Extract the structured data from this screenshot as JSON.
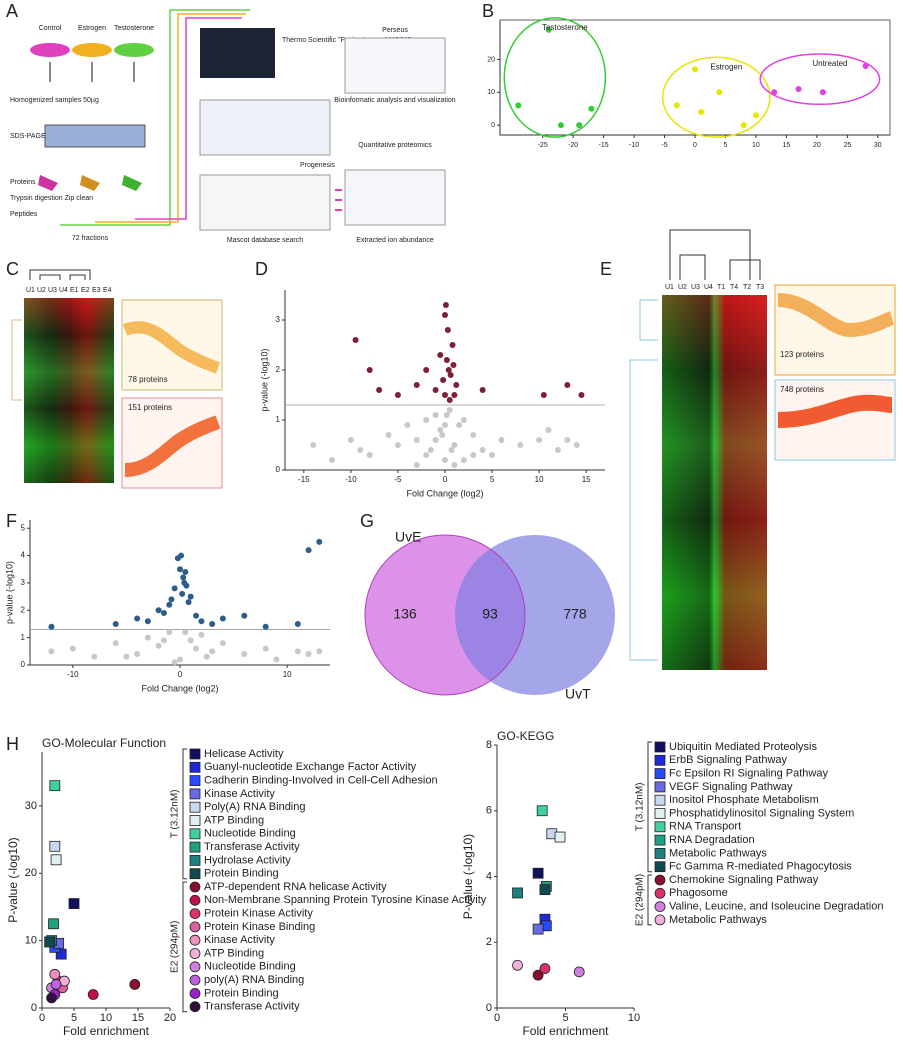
{
  "panel_labels": [
    "A",
    "B",
    "C",
    "D",
    "E",
    "F",
    "G",
    "H"
  ],
  "panel_a": {
    "groups": [
      "Control",
      "Estrogen",
      "Testosterone"
    ],
    "homogenized": "Homogenized samples 50µg",
    "sds": "SDS-PAGE",
    "proteins": "Proteins",
    "digestion": "Trypsin digestion Zip clean",
    "peptides": "Peptides",
    "fractions": "72 fractions",
    "instrument": "Thermo Scientific \"Fusion Lumos\" MS/MS",
    "progenesis": "Progenesis",
    "mascot": "Mascot database search",
    "perseus": "Perseus",
    "bioinfo": "Bioinformatic analysis and visualization",
    "quant": "Quantitative proteomics",
    "extracted": "Extracted ion abundance"
  },
  "panel_c": {
    "columns": [
      "U1",
      "U2",
      "U3",
      "U4",
      "E1",
      "E2",
      "E3",
      "E4"
    ],
    "clusters": [
      "78 proteins",
      "151 proteins"
    ]
  },
  "panel_e": {
    "columns": [
      "U1",
      "U2",
      "U3",
      "U4",
      "T1",
      "T4",
      "T2",
      "T3"
    ],
    "clusters": [
      "123 proteins",
      "748 proteins"
    ]
  },
  "chart_data": [
    {
      "type": "scatter",
      "xlim": [
        -32,
        32
      ],
      "ylim": [
        -3,
        32
      ],
      "xticks": [
        -25,
        -20,
        -15,
        -10,
        -5,
        0,
        5,
        10,
        15,
        20,
        25,
        30
      ],
      "yticks": [
        0,
        10,
        20
      ],
      "series": [
        {
          "name": "Testosterone",
          "color": "#33cc33",
          "x": [
            -24,
            -29,
            -22,
            -17,
            -19
          ],
          "values": [
            29,
            6,
            0,
            5,
            0
          ]
        },
        {
          "name": "Estrogen",
          "color": "#e6e600",
          "x": [
            -3,
            0,
            1,
            4,
            8,
            10
          ],
          "values": [
            6,
            17,
            4,
            10,
            0,
            3
          ]
        },
        {
          "name": "Untreated",
          "color": "#e040e0",
          "x": [
            13,
            17,
            21,
            28
          ],
          "values": [
            10,
            11,
            10,
            18
          ]
        }
      ]
    },
    {
      "type": "scatter",
      "xlabel": "Fold Change (log2)",
      "ylabel": "p-value (-log10)",
      "xlim": [
        -17,
        17
      ],
      "ylim": [
        0,
        3.6
      ],
      "xticks": [
        -15,
        -10,
        -5,
        0,
        5,
        10,
        15
      ],
      "yticks": [
        0,
        1,
        2,
        3
      ],
      "threshold": 1.3,
      "series": [
        {
          "color": "#c8c8c8",
          "x": [
            -14,
            -12,
            -10,
            -9,
            -8,
            -6,
            -5,
            -4,
            -3,
            -2,
            -1.5,
            -1,
            -0.5,
            0,
            0.5,
            1,
            1.5,
            2,
            3,
            4,
            5,
            6,
            8,
            10,
            11,
            12,
            13,
            14,
            -2,
            -1,
            0,
            1,
            2,
            -3,
            3,
            0.2,
            -0.3,
            0.7
          ],
          "values": [
            0.5,
            0.2,
            0.6,
            0.4,
            0.3,
            0.7,
            0.5,
            0.9,
            0.6,
            1.0,
            0.4,
            1.1,
            0.8,
            0.2,
            1.2,
            0.5,
            0.9,
            1.0,
            0.7,
            0.4,
            0.3,
            0.6,
            0.5,
            0.6,
            0.8,
            0.4,
            0.6,
            0.5,
            0.3,
            0.6,
            0.9,
            0.1,
            0.2,
            0.1,
            0.3,
            1.1,
            0.7,
            0.4
          ]
        },
        {
          "color": "#7b2035",
          "x": [
            -9.5,
            -7,
            -5,
            -3,
            -2,
            -1,
            -0.5,
            0,
            0.3,
            0.6,
            1,
            0.2,
            -0.2,
            0.5,
            0.8,
            1.2,
            0,
            0.4,
            0.9,
            10.5,
            13,
            14.5,
            4,
            -8,
            0.1
          ],
          "values": [
            2.6,
            1.6,
            1.5,
            1.7,
            2.0,
            1.6,
            2.3,
            3.1,
            2.8,
            1.9,
            1.5,
            2.2,
            1.8,
            1.4,
            2.5,
            1.7,
            1.5,
            2.0,
            2.1,
            1.5,
            1.7,
            1.5,
            1.6,
            2.0,
            3.3
          ]
        }
      ]
    },
    {
      "type": "scatter",
      "xlabel": "Fold Change (log2)",
      "ylabel": "p-value (-log10)",
      "xlim": [
        -14,
        14
      ],
      "ylim": [
        0,
        5.3
      ],
      "xticks": [
        -10,
        0,
        10
      ],
      "yticks": [
        0,
        1,
        2,
        3,
        4,
        5
      ],
      "threshold": 1.3,
      "series": [
        {
          "color": "#c8c8c8",
          "x": [
            -12,
            -10,
            -8,
            -6,
            -4,
            -3,
            -2,
            -1,
            0,
            1,
            2,
            3,
            4,
            6,
            8,
            11,
            12,
            -5,
            -1.5,
            0.5,
            1.5,
            2.5,
            -0.5,
            9,
            13
          ],
          "values": [
            0.5,
            0.6,
            0.3,
            0.8,
            0.4,
            1.0,
            0.7,
            1.2,
            0.2,
            0.9,
            1.1,
            0.5,
            0.8,
            0.4,
            0.6,
            0.5,
            0.4,
            0.3,
            0.9,
            1.2,
            0.6,
            0.3,
            0.1,
            0.2,
            0.5
          ]
        },
        {
          "color": "#2d5d8a",
          "x": [
            -12,
            -6,
            -4,
            -3,
            -2,
            -1,
            -0.5,
            0,
            0.3,
            0.6,
            1,
            1.5,
            2,
            -0.2,
            0.8,
            0.1,
            0.4,
            -1.5,
            3,
            4,
            6,
            8,
            11,
            13,
            12,
            0.2,
            0.5,
            -0.8
          ],
          "values": [
            1.4,
            1.5,
            1.7,
            1.6,
            2.0,
            2.2,
            2.8,
            3.5,
            3.2,
            2.9,
            2.5,
            1.8,
            1.6,
            3.9,
            2.3,
            4.0,
            3.0,
            1.9,
            1.5,
            1.7,
            1.8,
            1.4,
            1.5,
            4.5,
            4.2,
            2.6,
            3.4,
            2.4
          ]
        }
      ]
    },
    {
      "type": "venn",
      "sets": [
        {
          "name": "UvE",
          "color": "#d77fe6"
        },
        {
          "name": "UvT",
          "color": "#7f7fe0"
        }
      ],
      "values": [
        136,
        93,
        778
      ]
    },
    {
      "type": "scatter",
      "title": "GO-Molecular  Function",
      "xlabel": "Fold enrichment",
      "ylabel": "P-value (-log10)",
      "xlim": [
        0,
        20
      ],
      "ylim": [
        0,
        38
      ],
      "xticks": [
        0,
        5,
        10,
        15,
        20
      ],
      "yticks": [
        0,
        10,
        20,
        30
      ],
      "groups": [
        {
          "name": "T (3.12nM)",
          "marker": "square",
          "series": [
            {
              "name": "Helicase  Activity",
              "color": "#101060",
              "x": [
                5
              ],
              "values": [
                15.5
              ]
            },
            {
              "name": "Guanyl-nucleotide Exchange Factor Activity",
              "color": "#1e2ad6",
              "x": [
                3
              ],
              "values": [
                8
              ]
            },
            {
              "name": "Cadherin Binding-Involved in Cell-Cell Adhesion",
              "color": "#2a4aff",
              "x": [
                2
              ],
              "values": [
                9
              ]
            },
            {
              "name": "Kinase Activity",
              "color": "#6a6ae8",
              "x": [
                2.6
              ],
              "values": [
                9.6
              ]
            },
            {
              "name": "Poly(A) RNA Binding",
              "color": "#c8d8f0",
              "x": [
                2
              ],
              "values": [
                24
              ]
            },
            {
              "name": "ATP Binding",
              "color": "#e0f0f0",
              "x": [
                2.2
              ],
              "values": [
                22
              ]
            },
            {
              "name": "Nucleotide Binding",
              "color": "#40d0a0",
              "x": [
                2
              ],
              "values": [
                33
              ]
            },
            {
              "name": "Transferase  Activity",
              "color": "#20a080",
              "x": [
                1.8
              ],
              "values": [
                12.5
              ]
            },
            {
              "name": "Hydrolase Activity",
              "color": "#208080",
              "x": [
                1.5
              ],
              "values": [
                10
              ]
            },
            {
              "name": "Protein  Binding",
              "color": "#104a50",
              "x": [
                1.2
              ],
              "values": [
                9.8
              ]
            }
          ]
        },
        {
          "name": "E2 (294pM)",
          "marker": "circle",
          "series": [
            {
              "name": "ATP-dependent RNA helicase Activity",
              "color": "#8b1030",
              "x": [
                14.5
              ],
              "values": [
                3.5
              ]
            },
            {
              "name": "Non-Membrane Spanning Protein Tyrosine Kinase Activity",
              "color": "#c01050",
              "x": [
                8
              ],
              "values": [
                2
              ]
            },
            {
              "name": "Protein Kinase Activity",
              "color": "#e03070",
              "x": [
                2.5
              ],
              "values": [
                4
              ]
            },
            {
              "name": "Protein  Kinase Binding",
              "color": "#e060a0",
              "x": [
                3.2
              ],
              "values": [
                3
              ]
            },
            {
              "name": "Kinase Activity",
              "color": "#f090c0",
              "x": [
                2
              ],
              "values": [
                5
              ]
            },
            {
              "name": "ATP Binding",
              "color": "#f0b0d8",
              "x": [
                3.5
              ],
              "values": [
                4
              ]
            },
            {
              "name": "Nucleotide Binding",
              "color": "#d080e0",
              "x": [
                1.5
              ],
              "values": [
                3
              ]
            },
            {
              "name": "poly(A) RNA Binding",
              "color": "#c060e0",
              "x": [
                2.2
              ],
              "values": [
                3.5
              ]
            },
            {
              "name": "Protein Binding",
              "color": "#a020d0",
              "x": [
                2
              ],
              "values": [
                2
              ]
            },
            {
              "name": "Transferase  Activity",
              "color": "#301040",
              "x": [
                1.5
              ],
              "values": [
                1.5
              ]
            }
          ]
        }
      ]
    },
    {
      "type": "scatter",
      "title": "GO-KEGG",
      "xlabel": "Fold enrichment",
      "ylabel": "P-value (-log10)",
      "xlim": [
        0,
        10
      ],
      "ylim": [
        0,
        8
      ],
      "xticks": [
        0,
        5,
        10
      ],
      "yticks": [
        0,
        2,
        4,
        6,
        8
      ],
      "groups": [
        {
          "name": "T (3.12nM)",
          "marker": "square",
          "series": [
            {
              "name": "Ubiquitin Mediated Proteolysis",
              "color": "#101060",
              "x": [
                3
              ],
              "values": [
                4.1
              ]
            },
            {
              "name": "ErbB Signaling Pathway",
              "color": "#1e2ad6",
              "x": [
                3.5
              ],
              "values": [
                2.7
              ]
            },
            {
              "name": "Fc  Epsilon RI Signaling Pathway",
              "color": "#2a4aff",
              "x": [
                3.6
              ],
              "values": [
                2.5
              ]
            },
            {
              "name": "VEGF Signaling  Pathway",
              "color": "#6a6ae8",
              "x": [
                3
              ],
              "values": [
                2.4
              ]
            },
            {
              "name": "Inositol Phosphate Metabolism",
              "color": "#c8d8f0",
              "x": [
                4
              ],
              "values": [
                5.3
              ]
            },
            {
              "name": "Phosphatidylinositol Signaling System",
              "color": "#e0f0f0",
              "x": [
                4.6
              ],
              "values": [
                5.2
              ]
            },
            {
              "name": "RNA Transport",
              "color": "#40d0a0",
              "x": [
                3.3
              ],
              "values": [
                6.0
              ]
            },
            {
              "name": "RNA Degradation",
              "color": "#20a080",
              "x": [
                3.6
              ],
              "values": [
                3.7
              ]
            },
            {
              "name": "Metabolic Pathways",
              "color": "#208080",
              "x": [
                1.5
              ],
              "values": [
                3.5
              ]
            },
            {
              "name": "Fc Gamma  R-mediated Phagocytosis",
              "color": "#104a50",
              "x": [
                3.5
              ],
              "values": [
                3.6
              ]
            }
          ]
        },
        {
          "name": "E2 (294pM)",
          "marker": "circle",
          "series": [
            {
              "name": "Chemokine  Signaling  Pathway",
              "color": "#8b1030",
              "x": [
                3
              ],
              "values": [
                1.0
              ]
            },
            {
              "name": "Phagosome",
              "color": "#e03070",
              "x": [
                3.5
              ],
              "values": [
                1.2
              ]
            },
            {
              "name": "Valine, Leucine, and Isoleucine  Degradation",
              "color": "#d080e0",
              "x": [
                6
              ],
              "values": [
                1.1
              ]
            },
            {
              "name": "Metabolic Pathways",
              "color": "#f0b0d8",
              "x": [
                1.5
              ],
              "values": [
                1.3
              ]
            }
          ]
        }
      ]
    }
  ]
}
